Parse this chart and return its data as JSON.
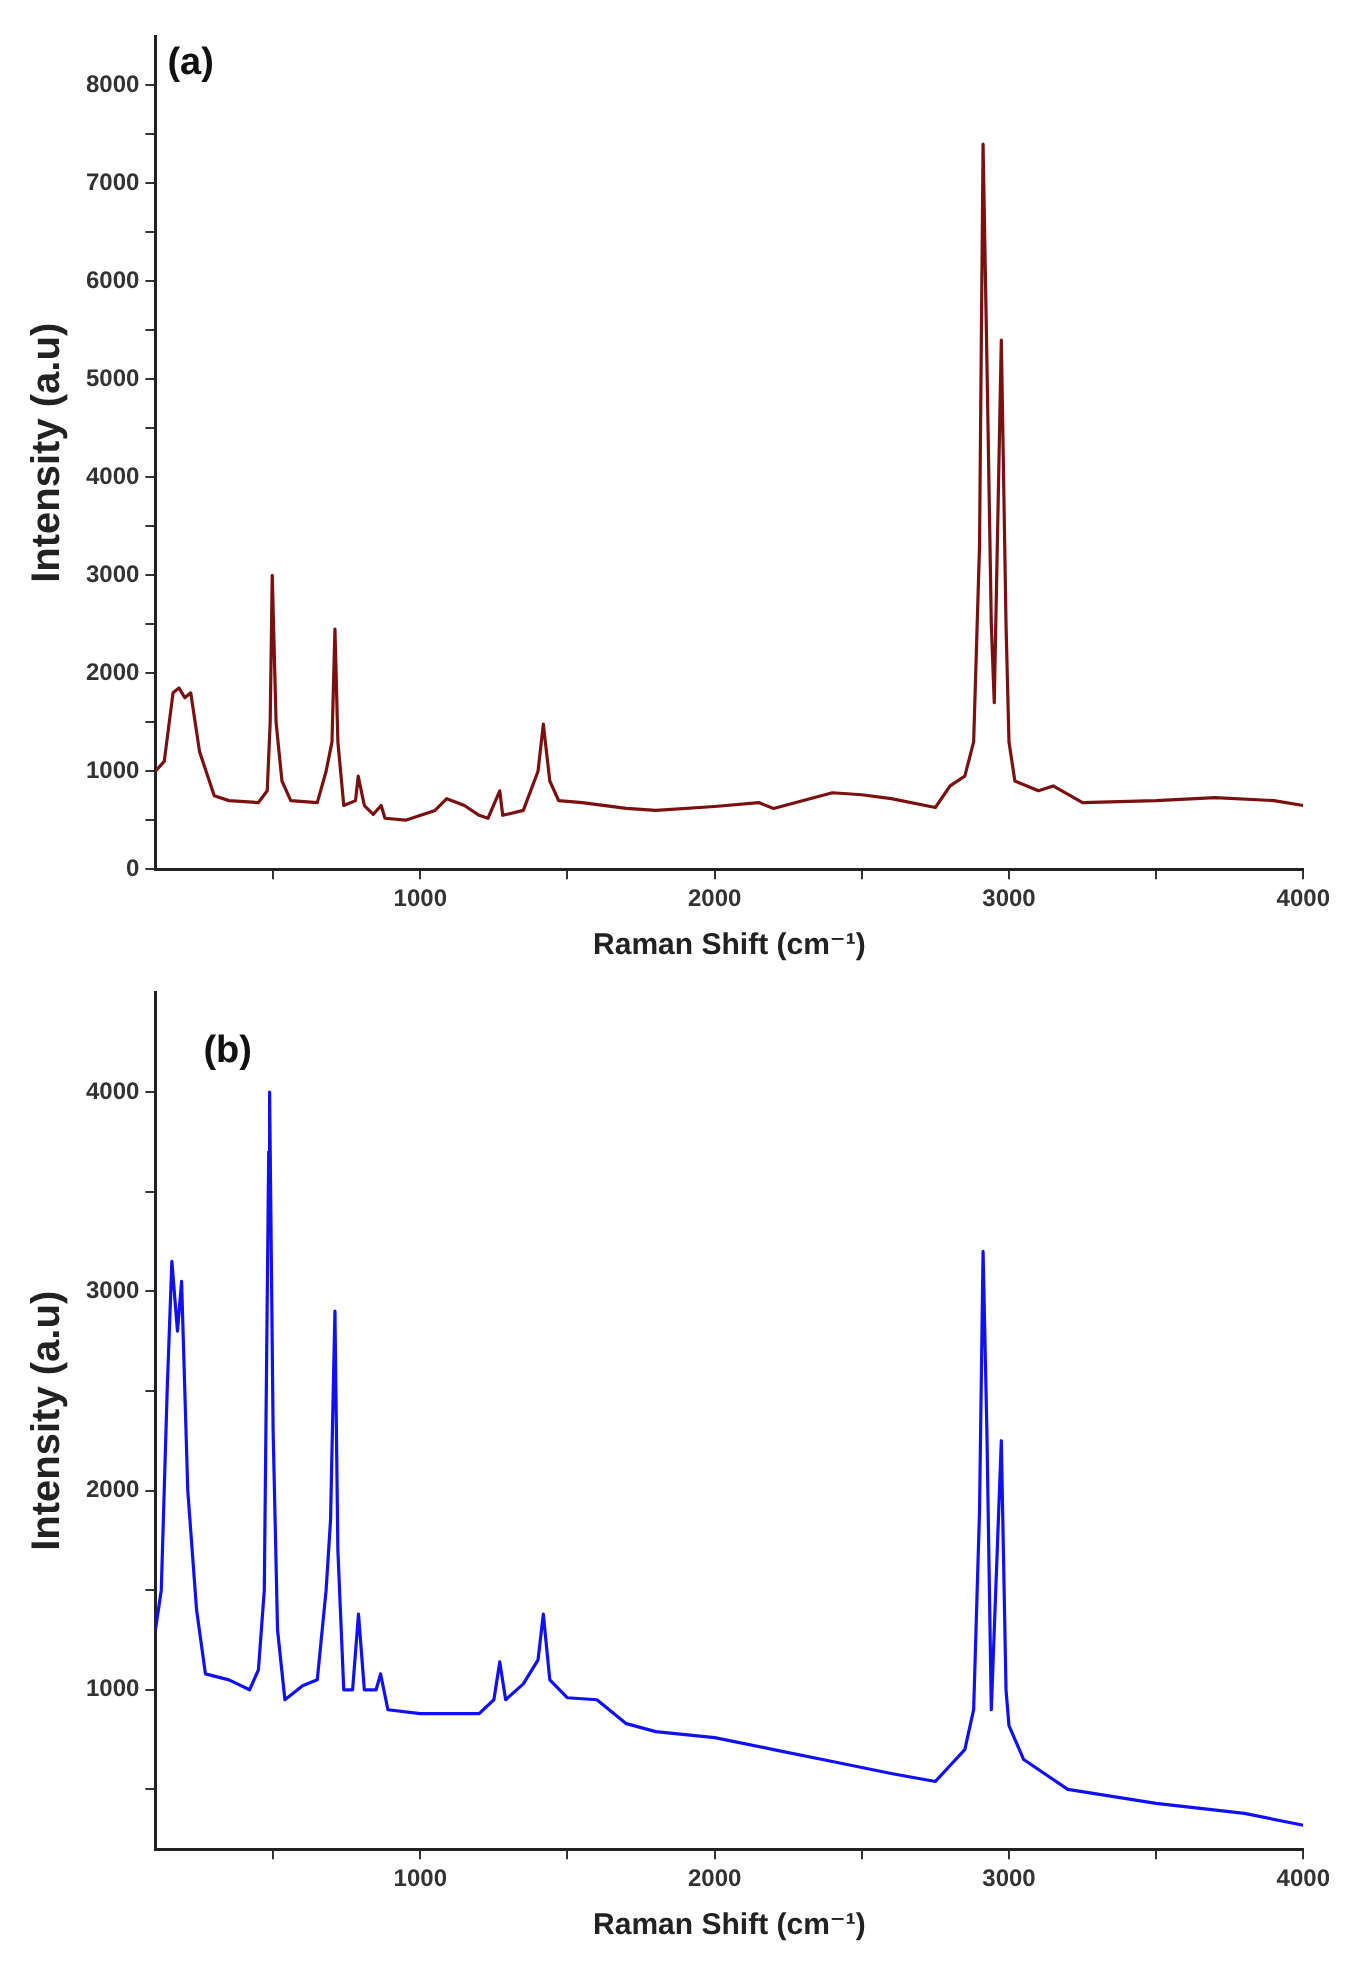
{
  "chart_data": [
    {
      "type": "line",
      "xlabel": "Raman Shift (cm⁻¹)",
      "ylabel": "Intensity (a.u)",
      "annotations": [
        "(a)"
      ],
      "legend": false,
      "grid": false,
      "xlim": [
        100,
        4000
      ],
      "xticks": [
        {
          "value": 500,
          "label": null
        },
        1000,
        {
          "value": 1500,
          "label": null
        },
        2000,
        {
          "value": 2500,
          "label": null
        },
        3000,
        {
          "value": 3500,
          "label": null
        },
        4000
      ],
      "ylim": [
        0,
        8500
      ],
      "yticks": [
        0,
        {
          "value": 500,
          "label": null
        },
        1000,
        {
          "value": 1500,
          "label": null
        },
        2000,
        {
          "value": 2500,
          "label": null
        },
        3000,
        {
          "value": 3500,
          "label": null
        },
        4000,
        {
          "value": 4500,
          "label": null
        },
        5000,
        {
          "value": 5500,
          "label": null
        },
        6000,
        {
          "value": 6500,
          "label": null
        },
        7000,
        {
          "value": 7500,
          "label": null
        },
        8000
      ],
      "x": [
        100,
        130,
        160,
        180,
        200,
        220,
        250,
        300,
        350,
        450,
        480,
        490,
        497,
        510,
        530,
        560,
        650,
        680,
        700,
        710,
        720,
        740,
        780,
        789,
        810,
        840,
        867,
        880,
        950,
        1050,
        1090,
        1150,
        1200,
        1230,
        1270,
        1280,
        1350,
        1400,
        1418,
        1440,
        1470,
        1550,
        1700,
        1800,
        2000,
        2150,
        2200,
        2400,
        2500,
        2600,
        2750,
        2800,
        2850,
        2880,
        2900,
        2912,
        2925,
        2940,
        2950,
        2974,
        2990,
        3000,
        3020,
        3100,
        3150,
        3250,
        3500,
        3700,
        3900,
        4000
      ],
      "series": [
        {
          "color": "#7a1010",
          "values": [
            1000,
            1100,
            1800,
            1850,
            1750,
            1800,
            1200,
            750,
            700,
            680,
            800,
            1500,
            3000,
            1500,
            900,
            700,
            680,
            1000,
            1300,
            2450,
            1300,
            650,
            700,
            950,
            650,
            560,
            650,
            520,
            500,
            600,
            720,
            650,
            550,
            520,
            800,
            550,
            600,
            1000,
            1480,
            900,
            700,
            680,
            620,
            600,
            640,
            680,
            620,
            780,
            760,
            720,
            630,
            850,
            950,
            1300,
            3300,
            7400,
            5200,
            2500,
            1700,
            5400,
            2500,
            1300,
            900,
            800,
            850,
            680,
            700,
            730,
            700,
            650
          ]
        }
      ]
    },
    {
      "type": "line",
      "xlabel": "Raman Shift (cm⁻¹)",
      "ylabel": "Intensity (a.u)",
      "annotations": [
        "(b)"
      ],
      "legend": false,
      "grid": false,
      "xlim": [
        100,
        4000
      ],
      "xticks": [
        {
          "value": 500,
          "label": null
        },
        1000,
        {
          "value": 1500,
          "label": null
        },
        2000,
        {
          "value": 2500,
          "label": null
        },
        3000,
        {
          "value": 3500,
          "label": null
        },
        4000
      ],
      "ylim": [
        200,
        4500
      ],
      "yticks": [
        {
          "value": 500,
          "label": null
        },
        1000,
        {
          "value": 1500,
          "label": null
        },
        2000,
        {
          "value": 2500,
          "label": null
        },
        3000,
        {
          "value": 3500,
          "label": null
        },
        4000
      ],
      "x": [
        100,
        120,
        140,
        156,
        175,
        189,
        210,
        240,
        270,
        350,
        420,
        450,
        470,
        485,
        488,
        500,
        515,
        540,
        600,
        650,
        680,
        695,
        710,
        720,
        740,
        770,
        790,
        810,
        850,
        865,
        890,
        1000,
        1200,
        1250,
        1270,
        1290,
        1350,
        1400,
        1418,
        1440,
        1500,
        1600,
        1700,
        1800,
        2000,
        2200,
        2400,
        2600,
        2750,
        2800,
        2850,
        2880,
        2900,
        2912,
        2925,
        2940,
        2974,
        2990,
        3000,
        3050,
        3200,
        3500,
        3800,
        4000
      ],
      "series": [
        {
          "color": "#1010f0",
          "values": [
            1300,
            1500,
            2500,
            3150,
            2800,
            3050,
            2000,
            1400,
            1080,
            1050,
            1000,
            1100,
            1500,
            3700,
            4000,
            2300,
            1300,
            950,
            1020,
            1050,
            1500,
            1850,
            2900,
            1700,
            1000,
            1000,
            1380,
            1000,
            1000,
            1080,
            900,
            880,
            880,
            950,
            1140,
            950,
            1030,
            1150,
            1380,
            1050,
            960,
            950,
            830,
            790,
            760,
            700,
            640,
            580,
            540,
            620,
            700,
            900,
            1900,
            3200,
            2300,
            900,
            2250,
            1000,
            820,
            650,
            500,
            430,
            380,
            320
          ]
        }
      ]
    }
  ]
}
